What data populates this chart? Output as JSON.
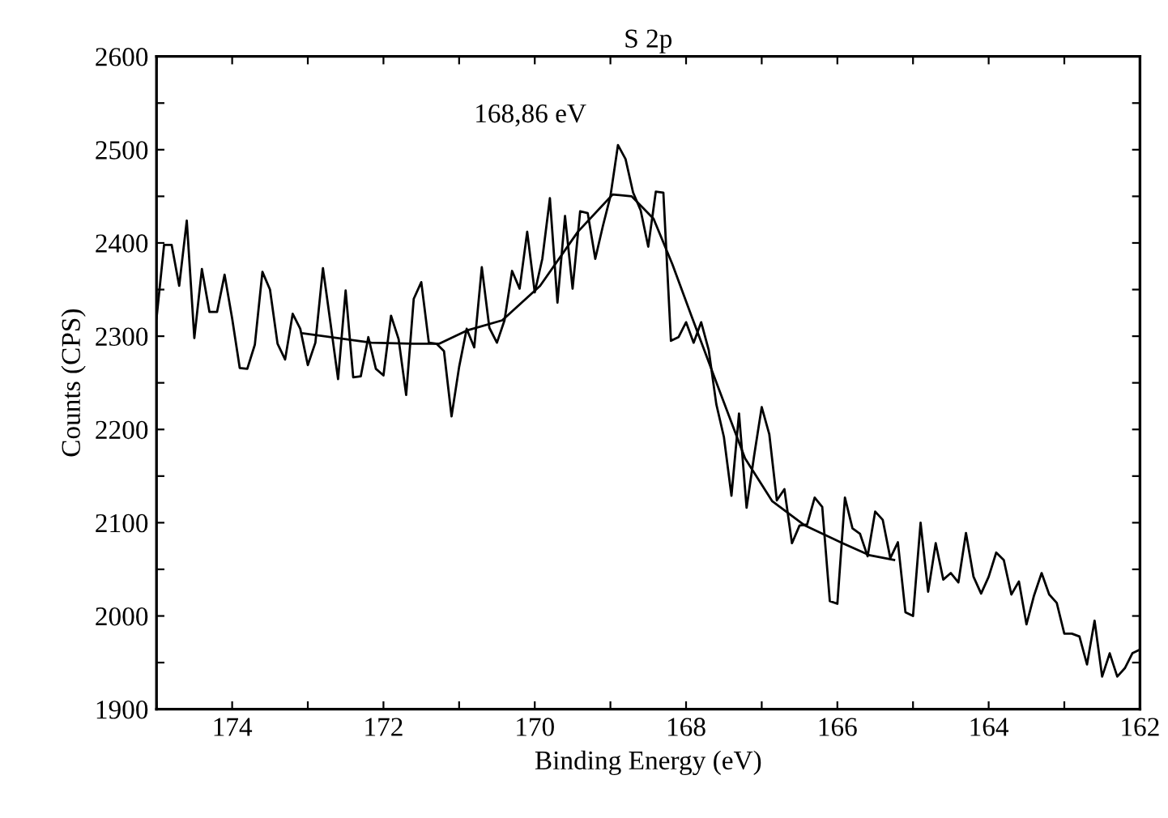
{
  "chart_data": {
    "type": "line",
    "title": "S 2p",
    "xlabel": "Binding Energy (eV)",
    "ylabel": "Counts (CPS)",
    "xlim": [
      175,
      162
    ],
    "ylim": [
      1900,
      2600
    ],
    "xticks": [
      {
        "value": 175,
        "label": null
      },
      174,
      {
        "value": 173,
        "label": null
      },
      172,
      {
        "value": 171,
        "label": null
      },
      170,
      {
        "value": 169,
        "label": null
      },
      168,
      {
        "value": 167,
        "label": null
      },
      166,
      {
        "value": 165,
        "label": null
      },
      164,
      {
        "value": 163,
        "label": null
      },
      162
    ],
    "yticks": [
      1900,
      {
        "value": 1950,
        "label": null
      },
      2000,
      {
        "value": 2050,
        "label": null
      },
      2100,
      {
        "value": 2150,
        "label": null
      },
      2200,
      {
        "value": 2250,
        "label": null
      },
      2300,
      {
        "value": 2350,
        "label": null
      },
      2400,
      {
        "value": 2450,
        "label": null
      },
      2500,
      {
        "value": 2550,
        "label": null
      },
      2600
    ],
    "grid": false,
    "marker": "none",
    "line_style": "solid",
    "annotations": [
      "168,86 eV"
    ],
    "series": [
      {
        "color": "#000000",
        "x": [
          175.0,
          174.9,
          174.8,
          174.7,
          174.6,
          174.5,
          174.4,
          174.3,
          174.2,
          174.1,
          174.0,
          173.9,
          173.8,
          173.7,
          173.6,
          173.5,
          173.4,
          173.3,
          173.2,
          173.1,
          173.0,
          172.9,
          172.8,
          172.7,
          172.6,
          172.5,
          172.4,
          172.3,
          172.2,
          172.1,
          172.0,
          171.9,
          171.8,
          171.7,
          171.6,
          171.5,
          171.4,
          171.3,
          171.2,
          171.1,
          171.0,
          170.9,
          170.8,
          170.7,
          170.6,
          170.5,
          170.4,
          170.3,
          170.2,
          170.1,
          170.0,
          169.9,
          169.8,
          169.7,
          169.6,
          169.5,
          169.4,
          169.3,
          169.2,
          169.1,
          169.0,
          168.9,
          168.8,
          168.7,
          168.6,
          168.5,
          168.4,
          168.3,
          168.2,
          168.1,
          168.0,
          167.9,
          167.8,
          167.7,
          167.6,
          167.5,
          167.4,
          167.3,
          167.2,
          167.1,
          167.0,
          166.9,
          166.8,
          166.7,
          166.6,
          166.5,
          166.4,
          166.3,
          166.2,
          166.1,
          166.0,
          165.9,
          165.8,
          165.7,
          165.6,
          165.5,
          165.4,
          165.3,
          165.2,
          165.1,
          165.0,
          164.9,
          164.8,
          164.7,
          164.6,
          164.5,
          164.4,
          164.3,
          164.2,
          164.1,
          164.0,
          163.9,
          163.8,
          163.7,
          163.6,
          163.5,
          163.4,
          163.3,
          163.2,
          163.1,
          163.0,
          162.9,
          162.8,
          162.7,
          162.6,
          162.5,
          162.4,
          162.3,
          162.2,
          162.1,
          162.0
        ],
        "values": [
          2319,
          2398,
          2398,
          2354,
          2424,
          2298,
          2372,
          2326,
          2326,
          2366,
          2319,
          2266,
          2265,
          2291,
          2369,
          2350,
          2292,
          2275,
          2324,
          2308,
          2269,
          2293,
          2373,
          2314,
          2254,
          2349,
          2256,
          2257,
          2299,
          2265,
          2258,
          2322,
          2297,
          2237,
          2340,
          2358,
          2293,
          2292,
          2284,
          2214,
          2267,
          2308,
          2288,
          2374,
          2309,
          2293,
          2317,
          2370,
          2351,
          2412,
          2347,
          2383,
          2448,
          2336,
          2429,
          2351,
          2434,
          2432,
          2383,
          2418,
          2450,
          2505,
          2490,
          2454,
          2435,
          2396,
          2455,
          2454,
          2295,
          2299,
          2315,
          2293,
          2315,
          2285,
          2227,
          2192,
          2129,
          2217,
          2116,
          2172,
          2224,
          2195,
          2124,
          2136,
          2078,
          2097,
          2098,
          2127,
          2117,
          2016,
          2013,
          2127,
          2094,
          2088,
          2064,
          2112,
          2103,
          2062,
          2079,
          2004,
          2000,
          2100,
          2026,
          2078,
          2039,
          2046,
          2036,
          2089,
          2042,
          2024,
          2042,
          2068,
          2060,
          2023,
          2037,
          1991,
          2022,
          2046,
          2023,
          2014,
          1981,
          1981,
          1978,
          1948,
          1995,
          1935,
          1960,
          1935,
          1944,
          1960,
          1964
        ]
      },
      {
        "color": "#000000",
        "x": [
          173.06,
          172.16,
          171.6,
          171.26,
          170.9,
          170.43,
          169.93,
          169.43,
          168.97,
          168.72,
          168.43,
          168.18,
          167.93,
          167.57,
          167.22,
          166.86,
          166.43,
          165.93,
          165.57,
          165.25
        ],
        "values": [
          2303,
          2293,
          2292,
          2292,
          2306,
          2317,
          2354,
          2412,
          2452,
          2450,
          2426,
          2377,
          2322,
          2244,
          2169,
          2123,
          2097,
          2078,
          2065,
          2060
        ]
      }
    ]
  }
}
